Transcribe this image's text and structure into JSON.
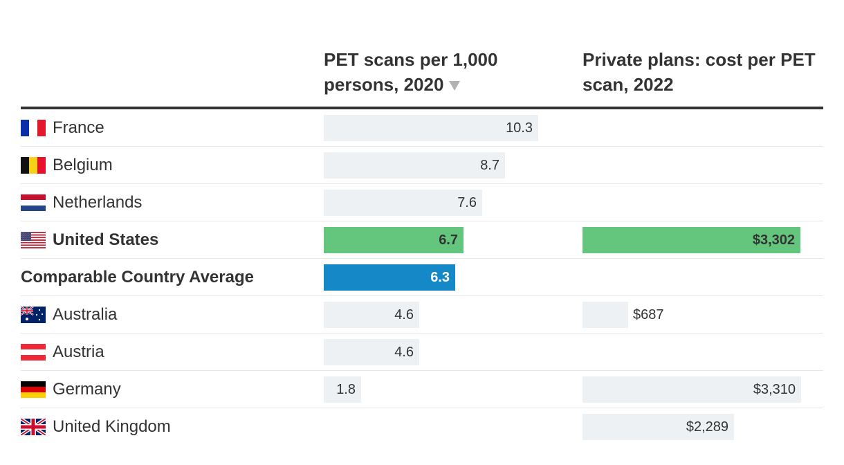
{
  "columns": {
    "pet_scans": {
      "title": "PET scans per 1,000 persons, 2020",
      "sort_icon": "sort-descending-icon"
    },
    "cost": {
      "title": "Private plans: cost per PET scan, 2022"
    }
  },
  "colors": {
    "light_bar": "#edf1f4",
    "us_bar": "#64c57c",
    "average_bar": "#1588c8",
    "text": "#333333"
  },
  "chart_data": {
    "type": "bar",
    "series": [
      {
        "name": "PET scans per 1,000 persons, 2020",
        "max": 10.3
      },
      {
        "name": "Private plans: cost per PET scan, 2022",
        "max": 3310
      }
    ],
    "rows": [
      {
        "country": "France",
        "flag": "france-flag-icon",
        "scans": 10.3,
        "scans_label": "10.3",
        "cost": null,
        "cost_label": "",
        "style": "normal"
      },
      {
        "country": "Belgium",
        "flag": "belgium-flag-icon",
        "scans": 8.7,
        "scans_label": "8.7",
        "cost": null,
        "cost_label": "",
        "style": "normal"
      },
      {
        "country": "Netherlands",
        "flag": "netherlands-flag-icon",
        "scans": 7.6,
        "scans_label": "7.6",
        "cost": null,
        "cost_label": "",
        "style": "normal"
      },
      {
        "country": "United States",
        "flag": "united-states-flag-icon",
        "scans": 6.7,
        "scans_label": "6.7",
        "cost": 3302,
        "cost_label": "$3,302",
        "style": "us"
      },
      {
        "country": "Comparable Country Average",
        "flag": null,
        "scans": 6.3,
        "scans_label": "6.3",
        "cost": null,
        "cost_label": "",
        "style": "average"
      },
      {
        "country": "Australia",
        "flag": "australia-flag-icon",
        "scans": 4.6,
        "scans_label": "4.6",
        "cost": 687,
        "cost_label": "$687",
        "style": "normal"
      },
      {
        "country": "Austria",
        "flag": "austria-flag-icon",
        "scans": 4.6,
        "scans_label": "4.6",
        "cost": null,
        "cost_label": "",
        "style": "normal"
      },
      {
        "country": "Germany",
        "flag": "germany-flag-icon",
        "scans": 1.8,
        "scans_label": "1.8",
        "cost": 3310,
        "cost_label": "$3,310",
        "style": "normal"
      },
      {
        "country": "United Kingdom",
        "flag": "united-kingdom-flag-icon",
        "scans": null,
        "scans_label": "",
        "cost": 2289,
        "cost_label": "$2,289",
        "style": "normal"
      }
    ]
  }
}
